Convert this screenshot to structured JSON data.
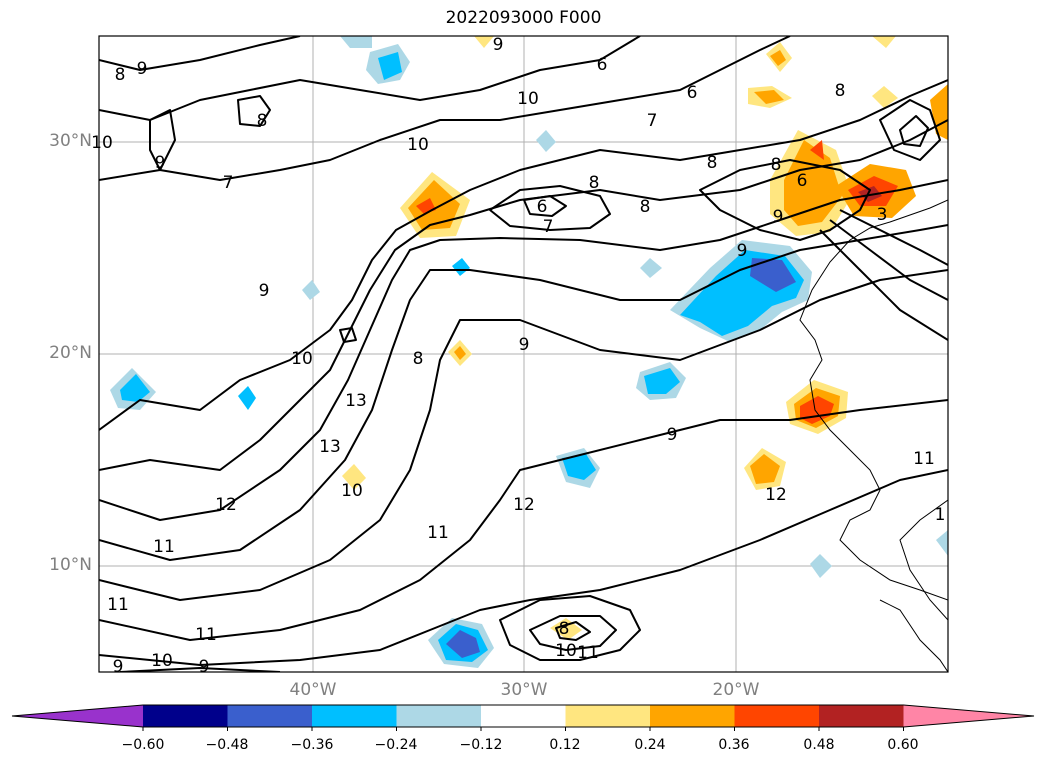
{
  "title": "2022093000 F000",
  "lat_labels": [
    "30°N",
    "20°N",
    "10°N"
  ],
  "lon_labels": [
    "40°W",
    "30°W",
    "20°W"
  ],
  "colorbar": {
    "ticks": [
      "−0.60",
      "−0.48",
      "−0.36",
      "−0.24",
      "−0.12",
      "0.12",
      "0.24",
      "0.36",
      "0.48",
      "0.60"
    ],
    "colors": [
      "#9932cc",
      "#00008b",
      "#3a5fcd",
      "#00bfff",
      "#add8e6",
      "#ffffff",
      "#ffe680",
      "#ffa500",
      "#ff4500",
      "#b22222",
      "#ff85a6"
    ]
  },
  "contour_labels": [
    "8",
    "9",
    "9",
    "6",
    "7",
    "6",
    "8",
    "8",
    "10",
    "8",
    "10",
    "10",
    "9",
    "7",
    "8",
    "7",
    "6",
    "8",
    "9",
    "8",
    "6",
    "3",
    "9",
    "9",
    "10",
    "8",
    "13",
    "13",
    "10",
    "9",
    "9",
    "12",
    "12",
    "11",
    "11",
    "12",
    "11",
    "11",
    "11",
    "10",
    "9",
    "9",
    "8",
    "10",
    "11",
    "1"
  ]
}
